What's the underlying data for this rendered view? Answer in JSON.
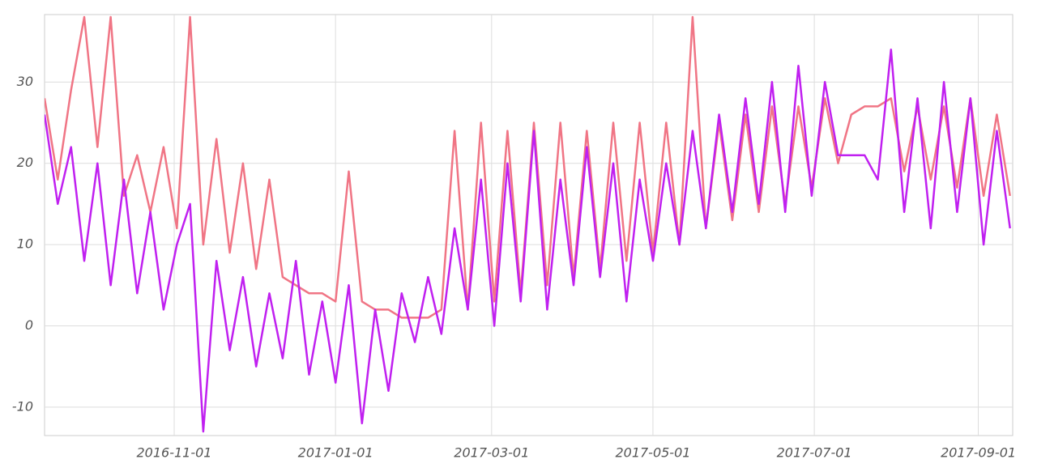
{
  "chart_data": {
    "type": "line",
    "x": [
      "2016-09-13",
      "2016-09-18",
      "2016-09-23",
      "2016-09-28",
      "2016-10-03",
      "2016-10-08",
      "2016-10-13",
      "2016-10-18",
      "2016-10-23",
      "2016-10-28",
      "2016-11-02",
      "2016-11-07",
      "2016-11-12",
      "2016-11-17",
      "2016-11-22",
      "2016-11-27",
      "2016-12-02",
      "2016-12-07",
      "2016-12-12",
      "2016-12-17",
      "2016-12-22",
      "2016-12-27",
      "2017-01-01",
      "2017-01-06",
      "2017-01-11",
      "2017-01-16",
      "2017-01-21",
      "2017-01-26",
      "2017-01-31",
      "2017-02-05",
      "2017-02-10",
      "2017-02-15",
      "2017-02-20",
      "2017-02-25",
      "2017-03-02",
      "2017-03-07",
      "2017-03-12",
      "2017-03-17",
      "2017-03-22",
      "2017-03-27",
      "2017-04-01",
      "2017-04-06",
      "2017-04-11",
      "2017-04-16",
      "2017-04-21",
      "2017-04-26",
      "2017-05-01",
      "2017-05-06",
      "2017-05-11",
      "2017-05-16",
      "2017-05-21",
      "2017-05-26",
      "2017-05-31",
      "2017-06-05",
      "2017-06-10",
      "2017-06-15",
      "2017-06-20",
      "2017-06-25",
      "2017-06-30",
      "2017-07-05",
      "2017-07-10",
      "2017-07-15",
      "2017-07-20",
      "2017-07-25",
      "2017-07-30",
      "2017-08-04",
      "2017-08-09",
      "2017-08-14",
      "2017-08-19",
      "2017-08-24",
      "2017-08-29",
      "2017-09-03",
      "2017-09-08",
      "2017-09-13"
    ],
    "series": [
      {
        "color": "#f07585",
        "values": [
          28,
          18,
          29,
          38,
          22,
          38,
          16,
          21,
          14,
          22,
          12,
          38,
          10,
          23,
          9,
          20,
          7,
          18,
          6,
          5,
          4,
          4,
          3,
          19,
          3,
          2,
          2,
          1,
          1,
          1,
          2,
          24,
          2,
          25,
          3,
          24,
          4,
          25,
          5,
          25,
          6,
          24,
          7,
          25,
          8,
          25,
          9,
          25,
          10,
          38,
          12,
          25,
          13,
          26,
          14,
          27,
          15,
          27,
          17,
          28,
          20,
          26,
          27,
          27,
          28,
          19,
          27,
          18,
          27,
          17,
          28,
          16,
          26,
          16
        ]
      },
      {
        "color": "#c020f0",
        "values": [
          26,
          15,
          22,
          8,
          20,
          5,
          18,
          4,
          14,
          2,
          10,
          15,
          -13,
          8,
          -3,
          6,
          -5,
          4,
          -4,
          8,
          -6,
          3,
          -7,
          5,
          -12,
          2,
          -8,
          4,
          -2,
          6,
          -1,
          12,
          2,
          18,
          0,
          20,
          3,
          24,
          2,
          18,
          5,
          22,
          6,
          20,
          3,
          18,
          8,
          20,
          10,
          24,
          12,
          26,
          14,
          28,
          15,
          30,
          14,
          32,
          16,
          30,
          21,
          21,
          21,
          18,
          34,
          14,
          28,
          12,
          30,
          14,
          28,
          10,
          24,
          12
        ]
      }
    ],
    "xlim": [
      "2016-09-13",
      "2017-09-14"
    ],
    "xticks": [
      "2016-11-01",
      "2017-01-01",
      "2017-03-01",
      "2017-05-01",
      "2017-07-01",
      "2017-09-01"
    ],
    "ylim": [
      -13.5,
      38.3
    ],
    "yticks": [
      -10,
      0,
      10,
      20,
      30
    ],
    "grid": true
  }
}
